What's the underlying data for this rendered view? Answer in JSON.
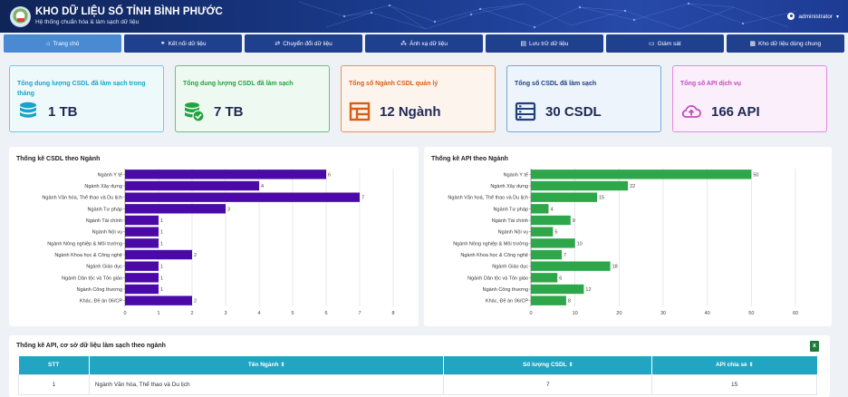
{
  "header": {
    "title": "KHO DỮ LIỆU SỐ TỈNH BÌNH PHƯỚC",
    "subtitle": "Hệ thống chuẩn hóa & làm sạch dữ liệu",
    "user": "administrator",
    "bg_color": "#1a3a8c"
  },
  "nav": {
    "items": [
      {
        "label": "Trang chủ",
        "icon": "home-icon",
        "active": true
      },
      {
        "label": "Kết nối dữ liệu",
        "icon": "link-icon"
      },
      {
        "label": "Chuyển đổi dữ liệu",
        "icon": "convert-icon"
      },
      {
        "label": "Ánh xạ dữ liệu",
        "icon": "mapping-icon"
      },
      {
        "label": "Lưu trữ dữ liệu",
        "icon": "storage-icon"
      },
      {
        "label": "Giám sát",
        "icon": "monitor-icon"
      },
      {
        "label": "Kho dữ liệu dùng chung",
        "icon": "shared-warehouse-icon"
      }
    ]
  },
  "stats": [
    {
      "label": "Tổng dung lượng CSDL đã làm sạch trong tháng",
      "value": "1 TB",
      "icon": "database-icon",
      "color": "#1aa3c8"
    },
    {
      "label": "Tổng dung lượng CSDL đã làm sạch",
      "value": "7 TB",
      "icon": "database-check-icon",
      "color": "#22a441"
    },
    {
      "label": "Tổng số Ngành CSDL quản lý",
      "value": "12 Ngành",
      "icon": "layout-icon",
      "color": "#d85f12"
    },
    {
      "label": "Tổng số CSDL đã làm sạch",
      "value": "30 CSDL",
      "icon": "server-list-icon",
      "color": "#1e3f82"
    },
    {
      "label": "Tổng số API dịch vụ",
      "value": "166 API",
      "icon": "cloud-upload-icon",
      "color": "#c24dbf"
    }
  ],
  "chart_data": [
    {
      "type": "bar",
      "orientation": "horizontal",
      "title": "Thống kê CSDL theo Ngành",
      "categories": [
        "Ngành Y tế",
        "Ngành Xây dựng",
        "Ngành Văn hóa, Thể thao và Du lịch",
        "Ngành Tư pháp",
        "Ngành Tài chính",
        "Ngành Nội vụ",
        "Ngành Nông nghiệp & Môi trường",
        "Ngành Khoa học & Công nghệ",
        "Ngành Giáo dục",
        "Ngành Dân tộc và Tôn giáo",
        "Ngành Công thương",
        "Khác, Đề án 06/CP"
      ],
      "values": [
        6,
        4,
        7,
        3,
        1,
        1,
        1,
        2,
        1,
        1,
        1,
        2
      ],
      "xlim": [
        0,
        8
      ],
      "ticks": [
        0,
        1,
        2,
        3,
        4,
        5,
        6,
        7,
        8
      ],
      "grid": true,
      "color": "#4b0aa8"
    },
    {
      "type": "bar",
      "orientation": "horizontal",
      "title": "Thống kê API theo Ngành",
      "categories": [
        "Ngành Y tế",
        "Ngành Xây dựng",
        "Ngành Văn hoá, Thể thao và Du lịch",
        "Ngành Tư pháp",
        "Ngành Tài chính",
        "Ngành Nội vụ",
        "Ngành Nông nghiệp & Môi trường",
        "Ngành Khoa học & Công nghệ",
        "Ngành Giáo dục",
        "Ngành Dân tộc và Tôn giáo",
        "Ngành Công thương",
        "Khác, Đề án 06/CP"
      ],
      "values": [
        50,
        22,
        15,
        4,
        9,
        5,
        10,
        7,
        18,
        6,
        12,
        8
      ],
      "xlim": [
        0,
        60
      ],
      "ticks": [
        0,
        10,
        20,
        30,
        40,
        50,
        60
      ],
      "grid": true,
      "color": "#2ea64a"
    }
  ],
  "table": {
    "title": "Thống kê API, cơ sở dữ liệu làm sạch theo ngành",
    "columns": [
      "STT",
      "Tên Ngành",
      "Số lượng CSDL",
      "API chia sẻ"
    ],
    "rows": [
      [
        "1",
        "Ngành Văn hóa, Thể thao và Du lịch",
        "7",
        "15"
      ]
    ],
    "header_color": "#21a5c3"
  }
}
